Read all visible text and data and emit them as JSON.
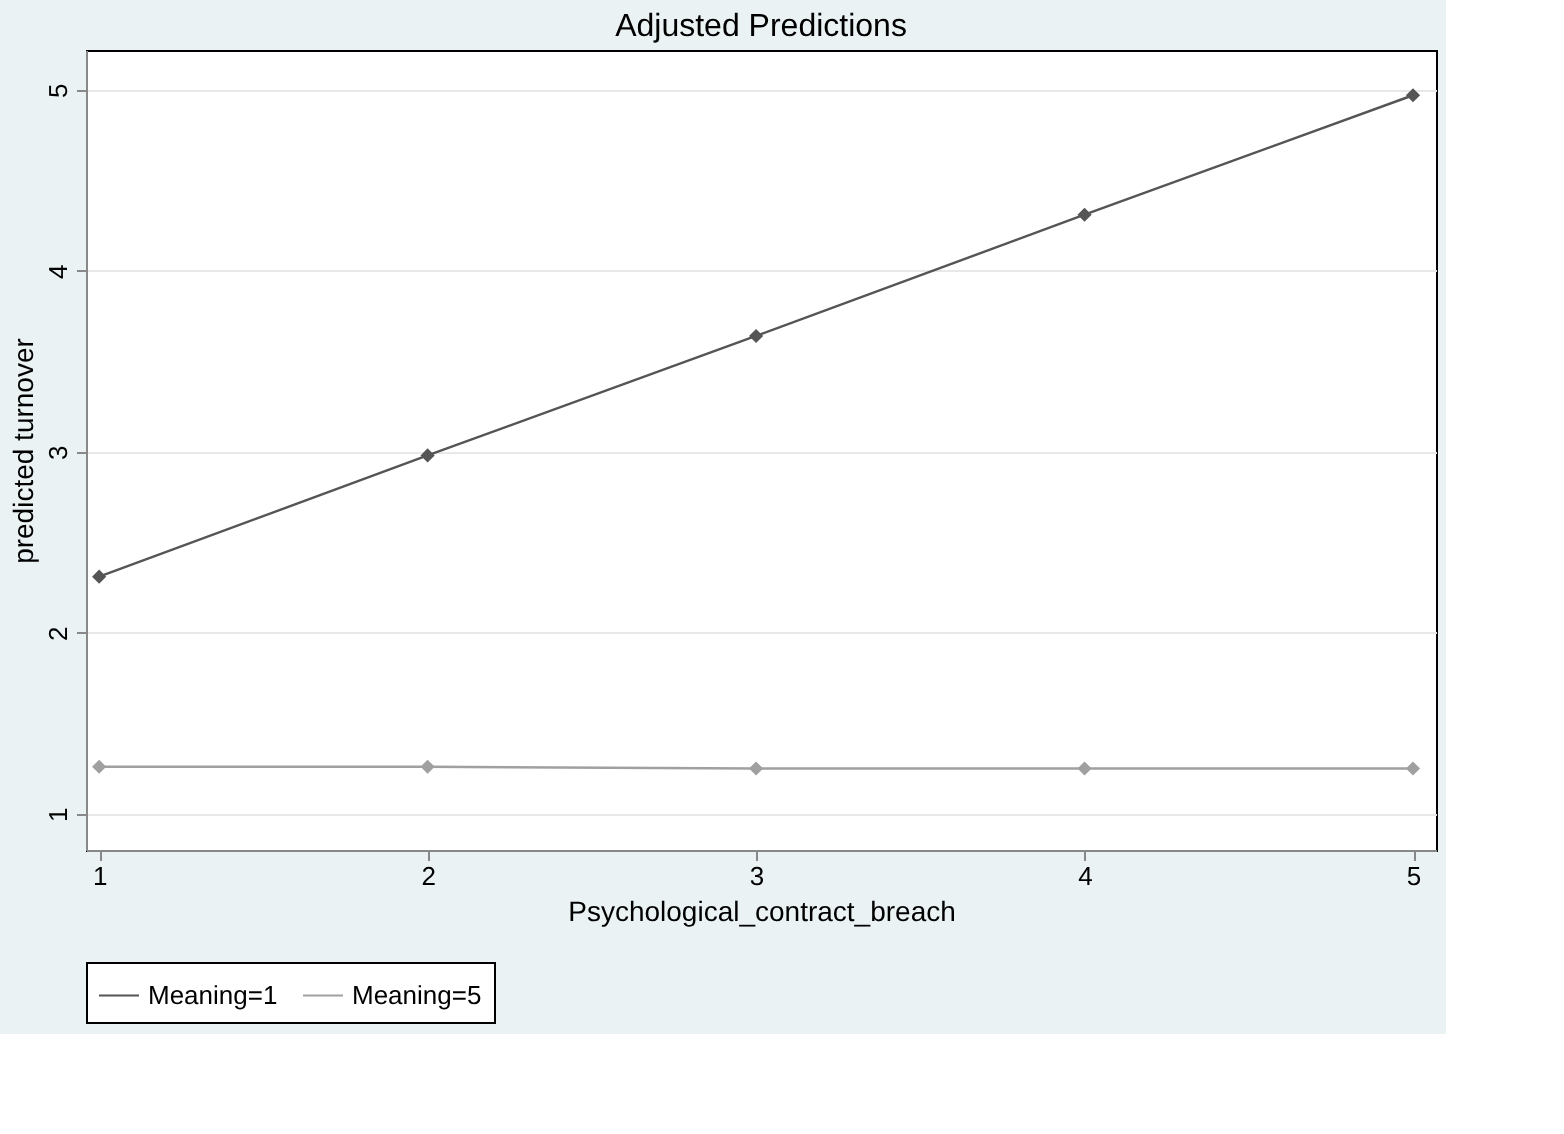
{
  "chart_data": {
    "type": "line",
    "title": "Adjusted Predictions",
    "xlabel": "Psychological_contract_breach",
    "ylabel": "predicted turnover",
    "x": [
      1,
      2,
      3,
      4,
      5
    ],
    "series": [
      {
        "name": "Meaning=1",
        "color": "#555555",
        "values": [
          2.31,
          2.98,
          3.64,
          4.31,
          4.97
        ]
      },
      {
        "name": "Meaning=5",
        "color": "#a0a0a0",
        "values": [
          1.26,
          1.26,
          1.25,
          1.25,
          1.25
        ]
      }
    ],
    "xlim": [
      0.96,
      5.07
    ],
    "xticks": [
      1,
      2,
      3,
      4,
      5
    ],
    "ylim": [
      0.8,
      5.22
    ],
    "yticks": [
      1,
      2,
      3,
      4,
      5
    ],
    "grid": "y",
    "legend": "bottom",
    "marker": "diamond",
    "line_style": "solid"
  }
}
